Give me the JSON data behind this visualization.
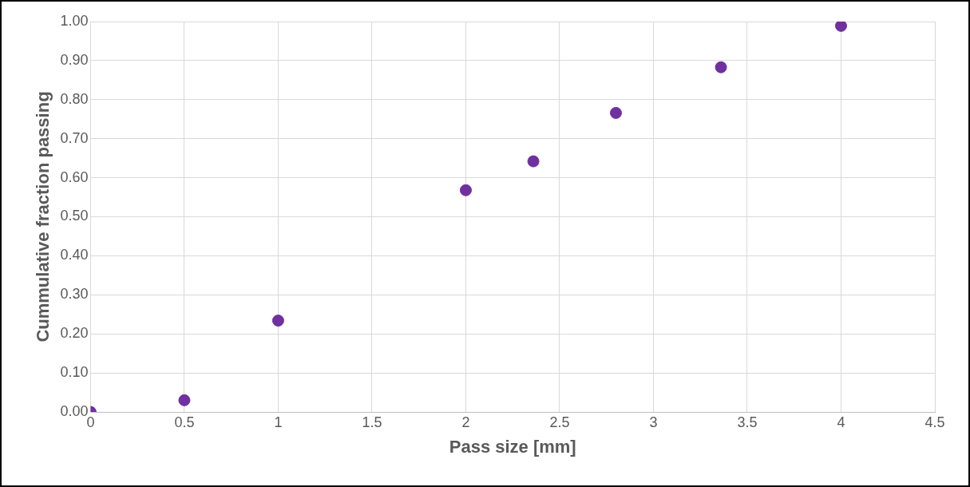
{
  "chart_data": {
    "type": "scatter",
    "xlabel": "Pass size [mm]",
    "ylabel": "Cummulative fraction passing",
    "x": [
      0,
      0.5,
      1,
      2,
      2.36,
      2.8,
      3.36,
      4
    ],
    "series": [
      {
        "color": "#7030a0",
        "values": [
          0,
          0.03,
          0.234,
          0.568,
          0.642,
          0.766,
          0.883,
          0.989
        ]
      }
    ],
    "xlim": [
      0,
      4.5
    ],
    "xticks": [
      0,
      0.5,
      1,
      1.5,
      2,
      2.5,
      3,
      3.5,
      4,
      4.5
    ],
    "ylim": [
      0,
      1
    ],
    "yticks": [
      {
        "value": 0,
        "label": "0.00"
      },
      {
        "value": 0.1,
        "label": "0.10"
      },
      {
        "value": 0.2,
        "label": "0.20"
      },
      {
        "value": 0.3,
        "label": "0.30"
      },
      {
        "value": 0.4,
        "label": "0.40"
      },
      {
        "value": 0.5,
        "label": "0.50"
      },
      {
        "value": 0.6,
        "label": "0.60"
      },
      {
        "value": 0.7,
        "label": "0.70"
      },
      {
        "value": 0.8,
        "label": "0.80"
      },
      {
        "value": 0.9,
        "label": "0.90"
      },
      {
        "value": 1,
        "label": "1.00"
      }
    ],
    "grid": true,
    "marker": "circle",
    "legend": false
  }
}
